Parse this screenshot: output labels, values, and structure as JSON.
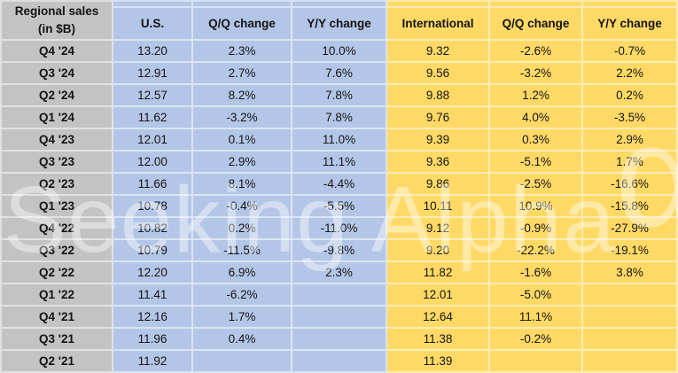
{
  "title": {
    "line1": "Regional sales",
    "line2": "(in $B)"
  },
  "columns": [
    "U.S.",
    "Q/Q change",
    "Y/Y change",
    "International",
    "Q/Q change",
    "Y/Y change"
  ],
  "rows": [
    {
      "label": "Q4 '24",
      "values": [
        "13.20",
        "2.3%",
        "10.0%",
        "9.32",
        "-2.6%",
        "-0.7%"
      ]
    },
    {
      "label": "Q3 '24",
      "values": [
        "12.91",
        "2.7%",
        "7.6%",
        "9.56",
        "-3.2%",
        "2.2%"
      ]
    },
    {
      "label": "Q2 '24",
      "values": [
        "12.57",
        "8.2%",
        "7.8%",
        "9.88",
        "1.2%",
        "0.2%"
      ]
    },
    {
      "label": "Q1 '24",
      "values": [
        "11.62",
        "-3.2%",
        "7.8%",
        "9.76",
        "4.0%",
        "-3.5%"
      ]
    },
    {
      "label": "Q4 '23",
      "values": [
        "12.01",
        "0.1%",
        "11.0%",
        "9.39",
        "0.3%",
        "2.9%"
      ]
    },
    {
      "label": "Q3 '23",
      "values": [
        "12.00",
        "2.9%",
        "11.1%",
        "9.36",
        "-5.1%",
        "1.7%"
      ]
    },
    {
      "label": "Q2 '23",
      "values": [
        "11.66",
        "8.1%",
        "-4.4%",
        "9.86",
        "-2.5%",
        "-16.6%"
      ]
    },
    {
      "label": "Q1 '23",
      "values": [
        "10.78",
        "-0.4%",
        "-5.5%",
        "10.11",
        "10.9%",
        "-15.8%"
      ]
    },
    {
      "label": "Q4 '22",
      "values": [
        "10.82",
        "0.2%",
        "-11.0%",
        "9.12",
        "-0.9%",
        "-27.9%"
      ]
    },
    {
      "label": "Q3 '22",
      "values": [
        "10.79",
        "-11.5%",
        "-9.8%",
        "9.20",
        "-22.2%",
        "-19.1%"
      ]
    },
    {
      "label": "Q2 '22",
      "values": [
        "12.20",
        "6.9%",
        "2.3%",
        "11.82",
        "-1.6%",
        "3.8%"
      ]
    },
    {
      "label": "Q1 '22",
      "values": [
        "11.41",
        "-6.2%",
        "",
        "12.01",
        "-5.0%",
        ""
      ]
    },
    {
      "label": "Q4 '21",
      "values": [
        "12.16",
        "1.7%",
        "",
        "12.64",
        "11.1%",
        ""
      ]
    },
    {
      "label": "Q3 '21",
      "values": [
        "11.96",
        "0.4%",
        "",
        "11.38",
        "-0.2%",
        ""
      ]
    },
    {
      "label": "Q2 '21",
      "values": [
        "11.92",
        "",
        "",
        "11.39",
        "",
        ""
      ]
    }
  ],
  "watermark": {
    "text": "Seeking Alpha",
    "alpha_glyph": "α"
  },
  "colors": {
    "label_bg": "#c3c3c3",
    "us_bg": "#b4c6e7",
    "intl_bg": "#ffd966",
    "gridline": "rgba(255,255,255,0.52)",
    "text": "#141414"
  },
  "chart_data": {
    "type": "table",
    "title": "Regional sales (in $B)",
    "row_labels": [
      "Q4 '24",
      "Q3 '24",
      "Q2 '24",
      "Q1 '24",
      "Q4 '23",
      "Q3 '23",
      "Q2 '23",
      "Q1 '23",
      "Q4 '22",
      "Q3 '22",
      "Q2 '22",
      "Q1 '22",
      "Q4 '21",
      "Q3 '21",
      "Q2 '21"
    ],
    "columns": [
      "U.S.",
      "Q/Q change",
      "Y/Y change",
      "International",
      "Q/Q change",
      "Y/Y change"
    ],
    "series": [
      {
        "name": "U.S. sales ($B)",
        "values": [
          13.2,
          12.91,
          12.57,
          11.62,
          12.01,
          12.0,
          11.66,
          10.78,
          10.82,
          10.79,
          12.2,
          11.41,
          12.16,
          11.96,
          11.92
        ]
      },
      {
        "name": "U.S. Q/Q change (%)",
        "values": [
          2.3,
          2.7,
          8.2,
          -3.2,
          0.1,
          2.9,
          8.1,
          -0.4,
          0.2,
          -11.5,
          6.9,
          -6.2,
          1.7,
          0.4,
          null
        ]
      },
      {
        "name": "U.S. Y/Y change (%)",
        "values": [
          10.0,
          7.6,
          7.8,
          7.8,
          11.0,
          11.1,
          -4.4,
          -5.5,
          -11.0,
          -9.8,
          2.3,
          null,
          null,
          null,
          null
        ]
      },
      {
        "name": "International sales ($B)",
        "values": [
          9.32,
          9.56,
          9.88,
          9.76,
          9.39,
          9.36,
          9.86,
          10.11,
          9.12,
          9.2,
          11.82,
          12.01,
          12.64,
          11.38,
          11.39
        ]
      },
      {
        "name": "International Q/Q change (%)",
        "values": [
          -2.6,
          -3.2,
          1.2,
          4.0,
          0.3,
          -5.1,
          -2.5,
          10.9,
          -0.9,
          -22.2,
          -1.6,
          -5.0,
          11.1,
          -0.2,
          null
        ]
      },
      {
        "name": "International Y/Y change (%)",
        "values": [
          -0.7,
          2.2,
          0.2,
          -3.5,
          2.9,
          1.7,
          -16.6,
          -15.8,
          -27.9,
          -19.1,
          3.8,
          null,
          null,
          null,
          null
        ]
      }
    ]
  }
}
